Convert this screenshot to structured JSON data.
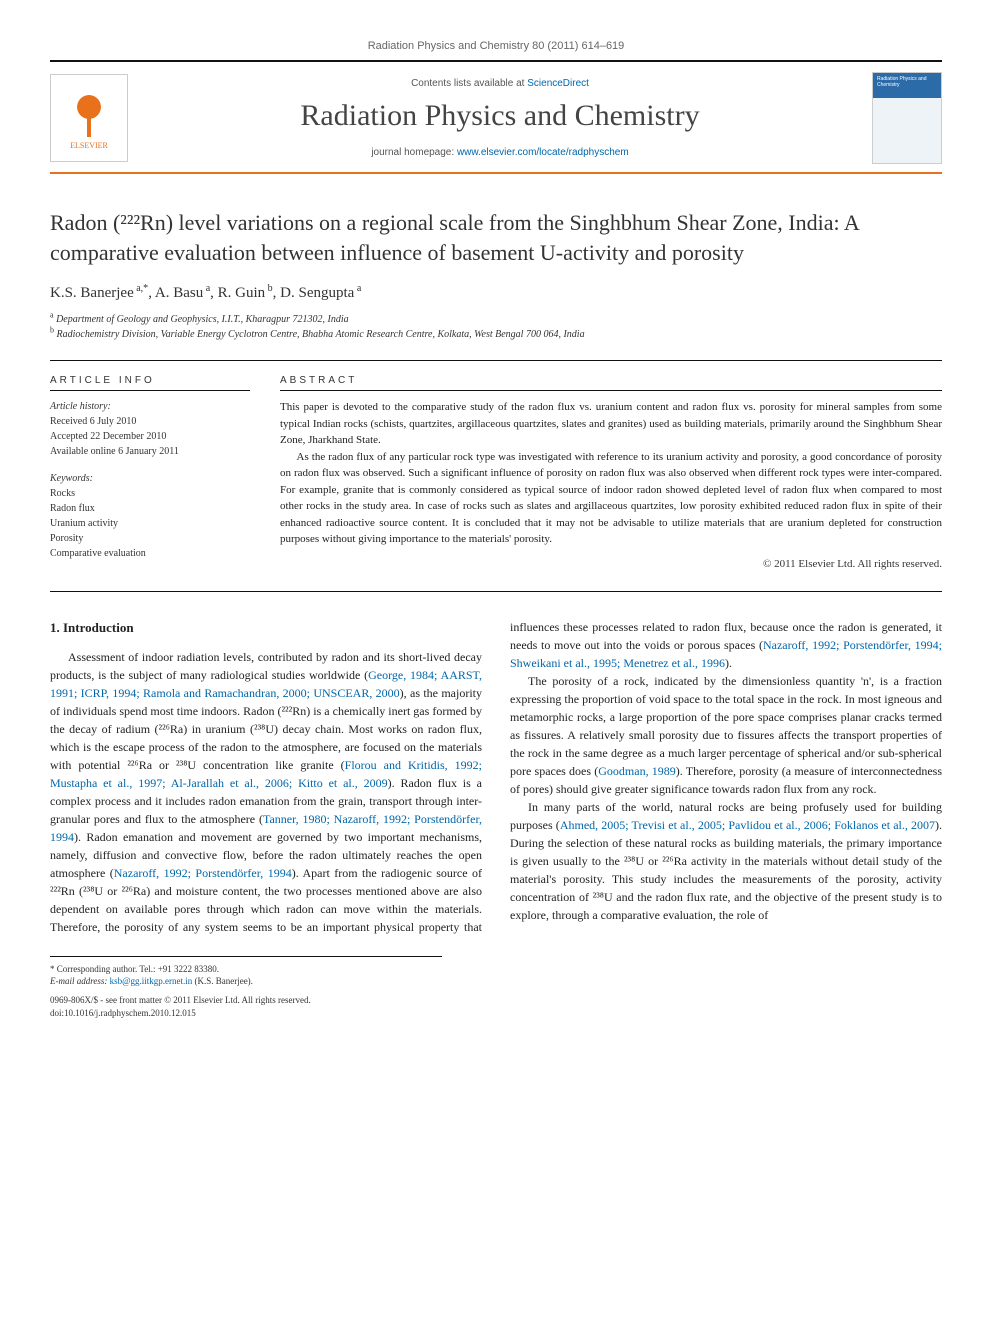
{
  "header": {
    "citation": "Radiation Physics and Chemistry 80 (2011) 614–619",
    "contents_prefix": "Contents lists available at ",
    "contents_link": "ScienceDirect",
    "journal_title": "Radiation Physics and Chemistry",
    "homepage_prefix": "journal homepage: ",
    "homepage_link": "www.elsevier.com/locate/radphyschem",
    "publisher": "ELSEVIER",
    "cover_title": "Radiation Physics and Chemistry"
  },
  "article": {
    "title_html": "Radon (²²²Rn) level variations on a regional scale from the Singhbhum Shear Zone, India: A comparative evaluation between influence of basement U-activity and porosity",
    "authors_html": "K.S. Banerjee <sup>a,*</sup>, A. Basu <sup>a</sup>, R. Guin <sup>b</sup>, D. Sengupta <sup>a</sup>",
    "affiliations": {
      "a": "Department of Geology and Geophysics, I.I.T., Kharagpur 721302, India",
      "b": "Radiochemistry Division, Variable Energy Cyclotron Centre, Bhabha Atomic Research Centre, Kolkata, West Bengal 700 064, India"
    }
  },
  "info": {
    "label": "ARTICLE INFO",
    "history_label": "Article history:",
    "received": "Received 6 July 2010",
    "accepted": "Accepted 22 December 2010",
    "online": "Available online 6 January 2011",
    "keywords_label": "Keywords:",
    "keywords": [
      "Rocks",
      "Radon flux",
      "Uranium activity",
      "Porosity",
      "Comparative evaluation"
    ]
  },
  "abstract": {
    "label": "ABSTRACT",
    "p1": "This paper is devoted to the comparative study of the radon flux vs. uranium content and radon flux vs. porosity for mineral samples from some typical Indian rocks (schists, quartzites, argillaceous quartzites, slates and granites) used as building materials, primarily around the Singhbhum Shear Zone, Jharkhand State.",
    "p2": "As the radon flux of any particular rock type was investigated with reference to its uranium activity and porosity, a good concordance of porosity on radon flux was observed. Such a significant influence of porosity on radon flux was also observed when different rock types were inter-compared. For example, granite that is commonly considered as typical source of indoor radon showed depleted level of radon flux when compared to most other rocks in the study area. In case of rocks such as slates and argillaceous quartzites, low porosity exhibited reduced radon flux in spite of their enhanced radioactive source content. It is concluded that it may not be advisable to utilize materials that are uranium depleted for construction purposes without giving importance to the materials' porosity.",
    "copyright": "© 2011 Elsevier Ltd. All rights reserved."
  },
  "body": {
    "section_title": "1. Introduction",
    "p1_a": "Assessment of indoor radiation levels, contributed by radon and its short-lived decay products, is the subject of many radiological studies worldwide (",
    "p1_ref1": "George, 1984; AARST, 1991; ICRP, 1994; Ramola and Ramachandran, 2000; UNSCEAR, 2000",
    "p1_b": "), as the majority of individuals spend most time indoors. Radon (²²²Rn) is a chemically inert gas formed by the decay of radium (²²⁶Ra) in uranium (²³⁸U) decay chain. Most works on radon flux, which is the escape process of the radon to the atmosphere, are focused on the materials with potential ²²⁶Ra or ²³⁸U concentration like granite (",
    "p1_ref2": "Florou and Kritidis, 1992; Mustapha et al., 1997; Al-Jarallah et al., 2006; Kitto et al., 2009",
    "p1_c": "). Radon flux is a complex process and it includes radon emanation from the grain, transport through inter-granular pores and flux to the atmosphere (",
    "p1_ref3": "Tanner, 1980; Nazaroff, 1992; Porstendörfer, 1994",
    "p1_d": "). Radon emanation and movement are governed by two important mechanisms, namely, diffusion and convective flow, before the radon ultimately reaches the open atmosphere (",
    "p1_ref4": "Nazaroff, 1992; Porstendörfer, 1994",
    "p1_e": "). Apart from the radiogenic source of ²²²Rn (²³⁸U or ²²⁶Ra) and moisture content, the two processes mentioned above are also dependent on available pores through which radon can move within the materials. Therefore, the porosity of any system seems to be an important physical property that influences these processes related to radon flux, because once the radon is generated, it needs to move out into the voids or porous spaces (",
    "p1_ref5": "Nazaroff, 1992; Porstendörfer, 1994; Shweikani et al., 1995; Menetrez et al., 1996",
    "p1_f": ").",
    "p2_a": "The porosity of a rock, indicated by the dimensionless quantity 'n', is a fraction expressing the proportion of void space to the total space in the rock. In most igneous and metamorphic rocks, a large proportion of the pore space comprises planar cracks termed as fissures. A relatively small porosity due to fissures affects the transport properties of the rock in the same degree as a much larger percentage of spherical and/or sub-spherical pore spaces does (",
    "p2_ref1": "Goodman, 1989",
    "p2_b": "). Therefore, porosity (a measure of interconnectedness of pores) should give greater significance towards radon flux from any rock.",
    "p3_a": "In many parts of the world, natural rocks are being profusely used for building purposes (",
    "p3_ref1": "Ahmed, 2005; Trevisi et al., 2005; Pavlidou et al., 2006; Foklanos et al., 2007",
    "p3_b": "). During the selection of these natural rocks as building materials, the primary importance is given usually to the ²³⁸U or ²²⁶Ra activity in the materials without detail study of the material's porosity. This study includes the measurements of the porosity, activity concentration of ²³⁸U and the radon flux rate, and the objective of the present study is to explore, through a comparative evaluation, the role of"
  },
  "footnotes": {
    "corr": "* Corresponding author. Tel.: +91 3222 83380.",
    "email_label": "E-mail address: ",
    "email": "ksb@gg.iitkgp.ernet.in",
    "email_tail": " (K.S. Banerjee)."
  },
  "bottom": {
    "issn": "0969-806X/$ - see front matter © 2011 Elsevier Ltd. All rights reserved.",
    "doi": "doi:10.1016/j.radphyschem.2010.12.015"
  },
  "colors": {
    "accent": "#e9711c",
    "link": "#0066aa",
    "rule": "#111111",
    "text": "#222222",
    "muted": "#666666"
  }
}
